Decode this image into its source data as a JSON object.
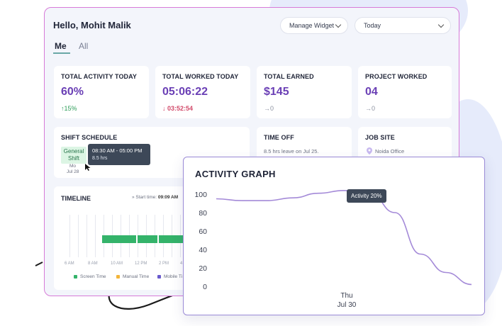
{
  "header": {
    "greeting": "Hello, Mohit Malik",
    "manage_widget": "Manage Widget",
    "date_range": "Today"
  },
  "tabs": {
    "me": "Me",
    "all": "All"
  },
  "stats": [
    {
      "title": "TOTAL ACTIVITY TODAY",
      "value": "60%",
      "sub_icon": "↑",
      "sub": "15%",
      "trend": "up"
    },
    {
      "title": "TOTAL WORKED TODAY",
      "value": "05:06:22",
      "sub_icon": "↓",
      "sub": "03:52:54",
      "trend": "down"
    },
    {
      "title": "TOTAL EARNED",
      "value": "$145",
      "sub_icon": "→",
      "sub": "0",
      "trend": "neutral"
    },
    {
      "title": "PROJECT WORKED",
      "value": "04",
      "sub_icon": "→",
      "sub": "0",
      "trend": "neutral"
    }
  ],
  "shift": {
    "title": "SHIFT SCHEDULE",
    "tag_line1": "General",
    "tag_line2": "Shift",
    "day": "Mo",
    "date": "Jul 28",
    "tooltip_time": "08:30 AM - 05:00 PM",
    "tooltip_hours": "8.5 hrs"
  },
  "time_off": {
    "title": "TIME OFF",
    "text": "8.5 hrs leave on Jul 25."
  },
  "job_site": {
    "title": "JOB SITE",
    "location": "Noida Office"
  },
  "timeline": {
    "title": "TIMELINE",
    "start_label": "» Start time:",
    "start_value": "09:09 AM",
    "time_labels": [
      "6 AM",
      "8 AM",
      "10 AM",
      "12 PM",
      "2 PM",
      "4"
    ],
    "legend": [
      {
        "label": "Screen Time",
        "color": "#34b36a"
      },
      {
        "label": "Manual Time",
        "color": "#f3b53a"
      },
      {
        "label": "Mobile Ti",
        "color": "#6a5acd"
      }
    ]
  },
  "activity_graph": {
    "title": "ACTIVITY GRAPH",
    "tooltip": "Activity 20%",
    "x_day": "Thu",
    "x_date": "Jul 30"
  },
  "chart_data": {
    "type": "line",
    "title": "ACTIVITY GRAPH",
    "yticks": [
      100,
      80,
      60,
      40,
      20,
      0
    ],
    "ylim": [
      0,
      100
    ],
    "x": [
      0,
      0.1,
      0.2,
      0.3,
      0.4,
      0.5,
      0.6,
      0.7,
      0.8,
      0.9,
      1.0
    ],
    "values": [
      95,
      93,
      93,
      96,
      101,
      104,
      102,
      80,
      35,
      15,
      2
    ],
    "line_color": "#a48ad8"
  }
}
